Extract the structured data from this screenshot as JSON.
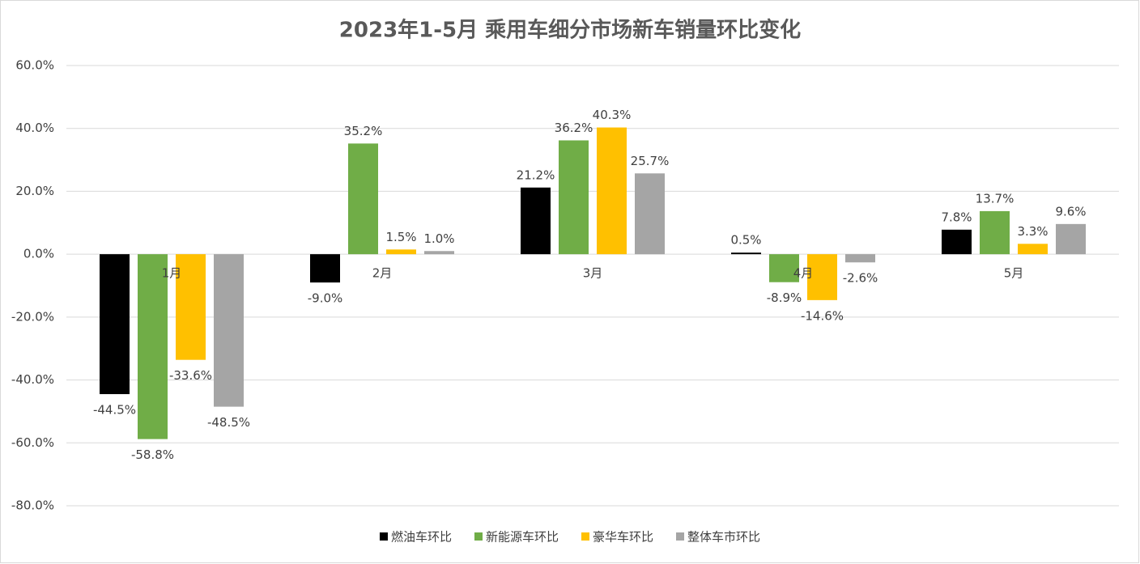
{
  "chart_data": {
    "type": "bar",
    "title": "2023年1-5月 乘用车细分市场新车销量环比变化",
    "categories": [
      "1月",
      "2月",
      "3月",
      "4月",
      "5月"
    ],
    "series": [
      {
        "name": "燃油车环比",
        "color": "#000000",
        "values": [
          -44.5,
          -9.0,
          21.2,
          0.5,
          7.8
        ],
        "value_labels": [
          "-44.5%",
          "-9.0%",
          "21.2%",
          "0.5%",
          "7.8%"
        ]
      },
      {
        "name": "新能源车环比",
        "color": "#70ad47",
        "values": [
          -58.8,
          35.2,
          36.2,
          -8.9,
          13.7
        ],
        "value_labels": [
          "-58.8%",
          "35.2%",
          "36.2%",
          "-8.9%",
          "13.7%"
        ]
      },
      {
        "name": "豪华车环比",
        "color": "#ffc000",
        "values": [
          -33.6,
          1.5,
          40.3,
          -14.6,
          3.3
        ],
        "value_labels": [
          "-33.6%",
          "1.5%",
          "40.3%",
          "-14.6%",
          "3.3%"
        ]
      },
      {
        "name": "整体车市环比",
        "color": "#a5a5a5",
        "values": [
          -48.5,
          1.0,
          25.7,
          -2.6,
          9.6
        ],
        "value_labels": [
          "-48.5%",
          "1.0%",
          "25.7%",
          "-2.6%",
          "9.6%"
        ]
      }
    ],
    "ylim": [
      -80,
      60
    ],
    "yticks": [
      {
        "value": -80,
        "label": "-80.0%"
      },
      {
        "value": -60,
        "label": "-60.0%"
      },
      {
        "value": -40,
        "label": "-40.0%"
      },
      {
        "value": -20,
        "label": "-20.0%"
      },
      {
        "value": 0,
        "label": "0.0%"
      },
      {
        "value": 20,
        "label": "20.0%"
      },
      {
        "value": 40,
        "label": "40.0%"
      },
      {
        "value": 60,
        "label": "60.0%"
      }
    ],
    "grid": true,
    "legend": "bottom"
  }
}
